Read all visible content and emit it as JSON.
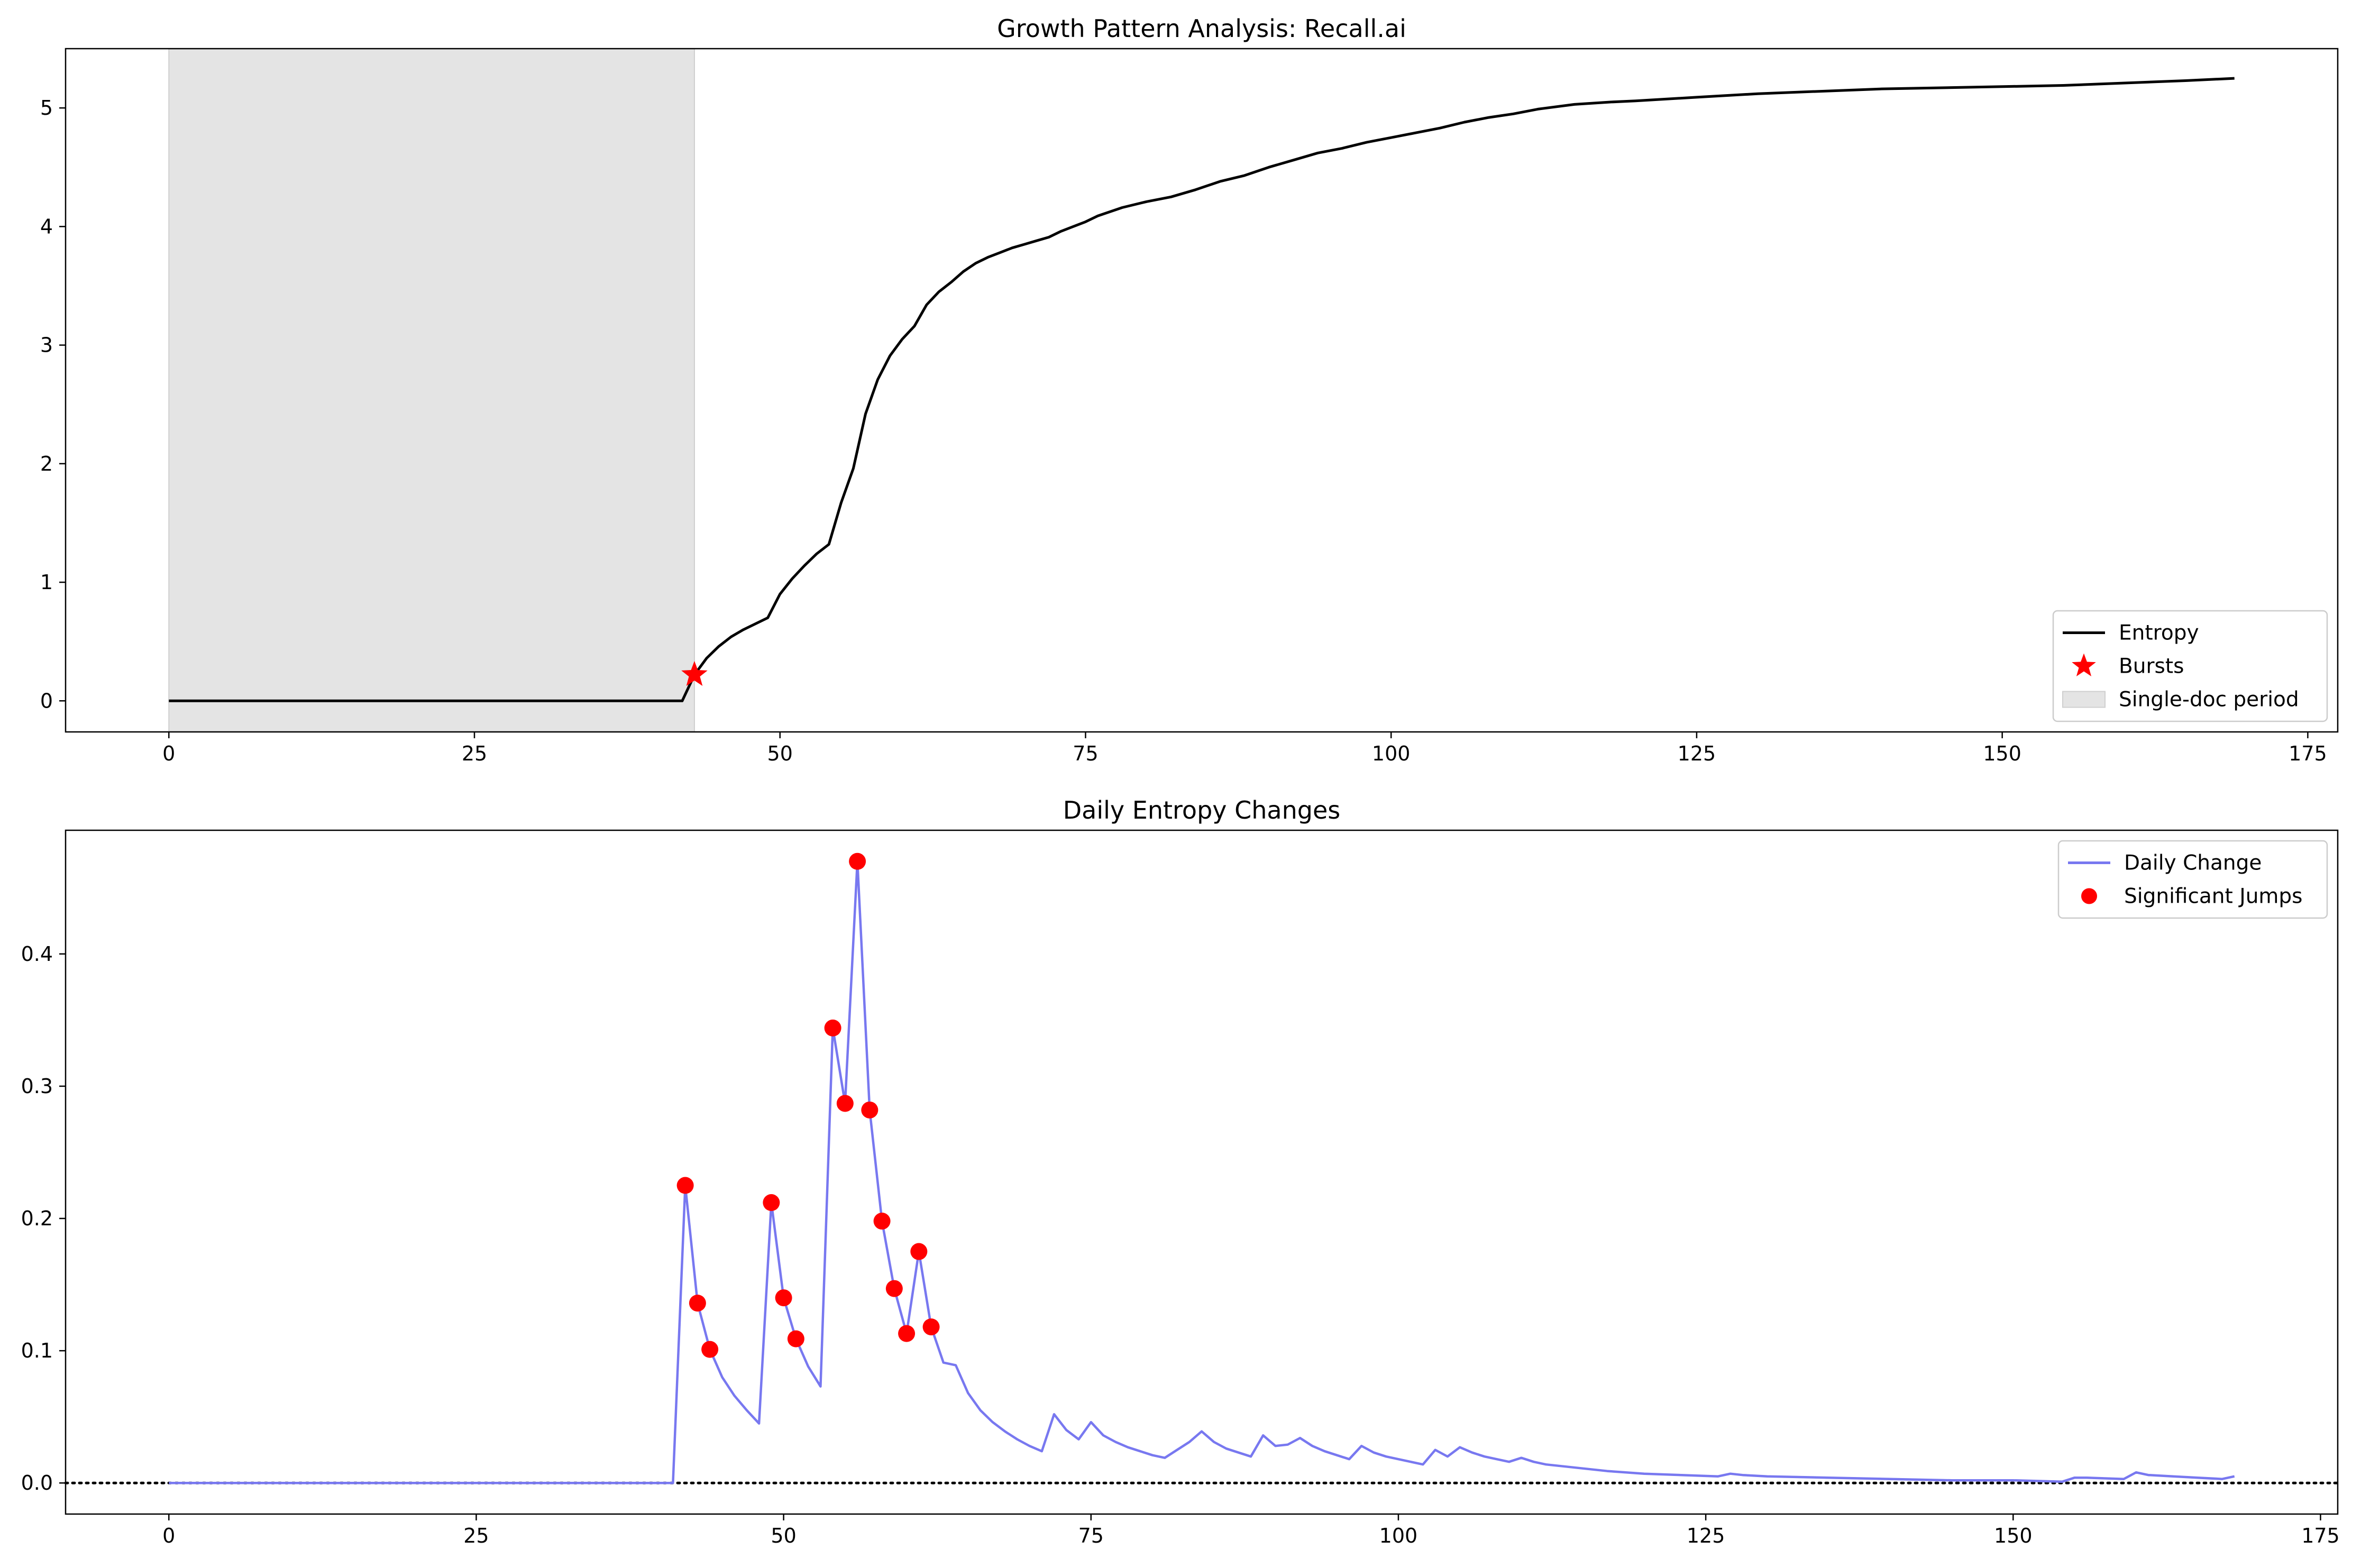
{
  "figure": {
    "background": "#ffffff"
  },
  "chart_data": [
    {
      "type": "line",
      "title": "Growth Pattern Analysis: Recall.ai",
      "xlabel": "",
      "ylabel": "",
      "xlim": [
        -8.45,
        177.45
      ],
      "ylim": [
        -0.262,
        5.5
      ],
      "xticks": [
        0,
        25,
        50,
        75,
        100,
        125,
        150,
        175
      ],
      "yticks": [
        0,
        1,
        2,
        3,
        4,
        5
      ],
      "grid": false,
      "legend_placement": "lower-right",
      "shaded_regions": [
        {
          "name": "Single-doc period",
          "x_start": 0,
          "x_end": 43,
          "color": "#e4e4e4"
        }
      ],
      "series": [
        {
          "name": "Entropy",
          "color": "#000000",
          "x": [
            0,
            42,
            43,
            44,
            45,
            46,
            47,
            48,
            49,
            50,
            51,
            52,
            53,
            54,
            55,
            56,
            57,
            58,
            59,
            60,
            61,
            62,
            63,
            64,
            65,
            66,
            67,
            68,
            69,
            70,
            71,
            72,
            73,
            74,
            75,
            76,
            78,
            80,
            82,
            84,
            86,
            88,
            90,
            92,
            94,
            96,
            98,
            100,
            102,
            104,
            106,
            108,
            110,
            112,
            115,
            118,
            120,
            125,
            130,
            135,
            140,
            145,
            150,
            155,
            160,
            165,
            169
          ],
          "y": [
            0,
            0,
            0.22,
            0.36,
            0.46,
            0.54,
            0.6,
            0.65,
            0.7,
            0.9,
            1.03,
            1.14,
            1.24,
            1.32,
            1.67,
            1.96,
            2.42,
            2.71,
            2.91,
            3.05,
            3.16,
            3.34,
            3.45,
            3.53,
            3.62,
            3.69,
            3.74,
            3.78,
            3.82,
            3.85,
            3.88,
            3.91,
            3.96,
            4.0,
            4.04,
            4.09,
            4.16,
            4.21,
            4.25,
            4.31,
            4.38,
            4.43,
            4.5,
            4.56,
            4.62,
            4.66,
            4.71,
            4.75,
            4.79,
            4.83,
            4.88,
            4.92,
            4.95,
            4.99,
            5.03,
            5.05,
            5.06,
            5.09,
            5.12,
            5.14,
            5.16,
            5.17,
            5.18,
            5.19,
            5.21,
            5.23,
            5.25
          ]
        },
        {
          "name": "Bursts",
          "marker": "star",
          "color": "#ff0000",
          "x": [
            43
          ],
          "y": [
            0.22
          ]
        }
      ],
      "legend": [
        "Entropy",
        "Bursts",
        "Single-doc period"
      ]
    },
    {
      "type": "line",
      "title": "Daily Entropy Changes",
      "xlabel": "",
      "ylabel": "",
      "xlim": [
        -8.4,
        176.4
      ],
      "ylim": [
        -0.0235,
        0.4935
      ],
      "xticks": [
        0,
        25,
        50,
        75,
        100,
        125,
        150,
        175
      ],
      "yticks": [
        0.0,
        0.1,
        0.2,
        0.3,
        0.4
      ],
      "grid": false,
      "legend_placement": "upper-right",
      "reference_line": {
        "y": 0,
        "style": "dotted",
        "color": "#000000"
      },
      "series": [
        {
          "name": "Daily Change",
          "color": "#7878f0",
          "x": [
            0,
            41,
            42,
            43,
            44,
            45,
            46,
            47,
            48,
            49,
            50,
            51,
            52,
            53,
            54,
            55,
            56,
            57,
            58,
            59,
            60,
            61,
            62,
            63,
            64,
            65,
            66,
            67,
            68,
            69,
            70,
            71,
            72,
            73,
            74,
            75,
            76,
            77,
            78,
            79,
            80,
            81,
            82,
            83,
            84,
            85,
            86,
            87,
            88,
            89,
            90,
            91,
            92,
            93,
            94,
            95,
            96,
            97,
            98,
            99,
            100,
            101,
            102,
            103,
            104,
            105,
            106,
            107,
            108,
            109,
            110,
            111,
            112,
            113,
            115,
            117,
            120,
            123,
            126,
            127,
            128,
            130,
            135,
            140,
            145,
            150,
            154,
            155,
            156,
            159,
            160,
            161,
            163,
            165,
            167,
            168
          ],
          "y": [
            0,
            0,
            0.225,
            0.136,
            0.101,
            0.08,
            0.066,
            0.055,
            0.045,
            0.212,
            0.14,
            0.109,
            0.088,
            0.073,
            0.344,
            0.287,
            0.47,
            0.282,
            0.198,
            0.147,
            0.113,
            0.175,
            0.118,
            0.091,
            0.089,
            0.068,
            0.055,
            0.046,
            0.039,
            0.033,
            0.028,
            0.024,
            0.052,
            0.04,
            0.033,
            0.046,
            0.036,
            0.031,
            0.027,
            0.024,
            0.021,
            0.019,
            0.025,
            0.031,
            0.039,
            0.031,
            0.026,
            0.023,
            0.02,
            0.036,
            0.028,
            0.029,
            0.034,
            0.028,
            0.024,
            0.021,
            0.018,
            0.028,
            0.023,
            0.02,
            0.018,
            0.016,
            0.014,
            0.025,
            0.02,
            0.027,
            0.023,
            0.02,
            0.018,
            0.016,
            0.019,
            0.016,
            0.014,
            0.013,
            0.011,
            0.009,
            0.007,
            0.006,
            0.005,
            0.007,
            0.006,
            0.005,
            0.004,
            0.003,
            0.002,
            0.002,
            0.001,
            0.004,
            0.004,
            0.003,
            0.008,
            0.006,
            0.005,
            0.004,
            0.003,
            0.005
          ]
        },
        {
          "name": "Significant Jumps",
          "marker": "circle",
          "color": "#ff0000",
          "x": [
            42,
            43,
            44,
            49,
            50,
            51,
            54,
            55,
            56,
            57,
            58,
            59,
            60,
            61,
            62
          ],
          "y": [
            0.225,
            0.136,
            0.101,
            0.212,
            0.14,
            0.109,
            0.344,
            0.287,
            0.47,
            0.282,
            0.198,
            0.147,
            0.113,
            0.175,
            0.118
          ]
        }
      ],
      "legend": [
        "Daily Change",
        "Significant Jumps"
      ]
    }
  ]
}
